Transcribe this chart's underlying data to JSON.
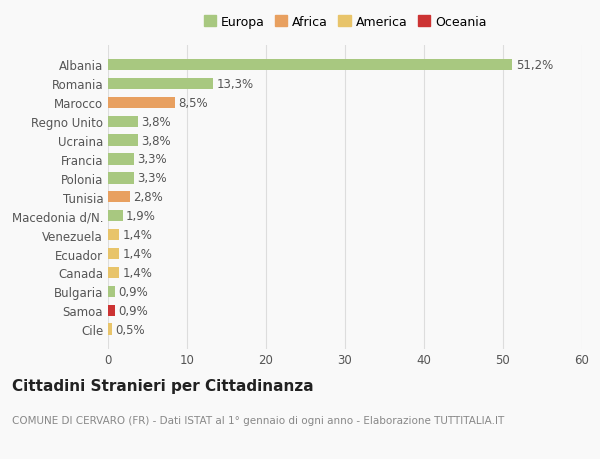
{
  "categories": [
    "Cile",
    "Samoa",
    "Bulgaria",
    "Canada",
    "Ecuador",
    "Venezuela",
    "Macedonia d/N.",
    "Tunisia",
    "Polonia",
    "Francia",
    "Ucraina",
    "Regno Unito",
    "Marocco",
    "Romania",
    "Albania"
  ],
  "values": [
    0.5,
    0.9,
    0.9,
    1.4,
    1.4,
    1.4,
    1.9,
    2.8,
    3.3,
    3.3,
    3.8,
    3.8,
    8.5,
    13.3,
    51.2
  ],
  "labels": [
    "0,5%",
    "0,9%",
    "0,9%",
    "1,4%",
    "1,4%",
    "1,4%",
    "1,9%",
    "2,8%",
    "3,3%",
    "3,3%",
    "3,8%",
    "3,8%",
    "8,5%",
    "13,3%",
    "51,2%"
  ],
  "colors": [
    "#e8c46a",
    "#cc3333",
    "#a8c880",
    "#e8c46a",
    "#e8c46a",
    "#e8c46a",
    "#a8c880",
    "#e8a060",
    "#a8c880",
    "#a8c880",
    "#a8c880",
    "#a8c880",
    "#e8a060",
    "#a8c880",
    "#a8c880"
  ],
  "legend": {
    "labels": [
      "Europa",
      "Africa",
      "America",
      "Oceania"
    ],
    "colors": [
      "#a8c880",
      "#e8a060",
      "#e8c46a",
      "#cc3333"
    ]
  },
  "xlim": [
    0,
    60
  ],
  "xticks": [
    0,
    10,
    20,
    30,
    40,
    50,
    60
  ],
  "title": "Cittadini Stranieri per Cittadinanza",
  "subtitle": "COMUNE DI CERVARO (FR) - Dati ISTAT al 1° gennaio di ogni anno - Elaborazione TUTTITALIA.IT",
  "bg_color": "#f9f9f9",
  "bar_height": 0.6,
  "grid_color": "#dddddd",
  "text_color": "#555555",
  "label_fontsize": 8.5,
  "title_fontsize": 11,
  "subtitle_fontsize": 7.5,
  "legend_fontsize": 9
}
